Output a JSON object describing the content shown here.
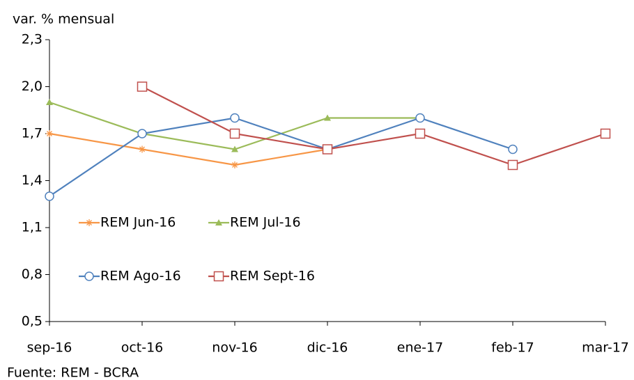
{
  "chart_data": {
    "type": "line",
    "y_label": "var. % mensual",
    "source": "Fuente: REM - BCRA",
    "categories": [
      "sep-16",
      "oct-16",
      "nov-16",
      "dic-16",
      "ene-17",
      "feb-17",
      "mar-17"
    ],
    "series": [
      {
        "name": "REM Jun-16",
        "color": "#f79646",
        "marker": "asterisk",
        "values": [
          1.7,
          1.6,
          1.5,
          1.6,
          null,
          null,
          null
        ]
      },
      {
        "name": "REM Jul-16",
        "color": "#9bbb59",
        "marker": "triangle",
        "values": [
          1.9,
          1.7,
          1.6,
          1.8,
          1.8,
          null,
          null
        ]
      },
      {
        "name": "REM Ago-16",
        "color": "#4f81bd",
        "marker": "circle",
        "values": [
          1.3,
          1.7,
          1.8,
          1.6,
          1.8,
          1.6,
          null
        ]
      },
      {
        "name": "REM Sept-16",
        "color": "#c0504d",
        "marker": "square",
        "values": [
          null,
          2.0,
          1.7,
          1.6,
          1.7,
          1.5,
          1.7
        ]
      }
    ],
    "ylim": [
      0.5,
      2.3
    ],
    "yticks": [
      {
        "value": 0.5,
        "label": "0,5"
      },
      {
        "value": 0.8,
        "label": "0,8"
      },
      {
        "value": 1.1,
        "label": "1,1"
      },
      {
        "value": 1.4,
        "label": "1,4"
      },
      {
        "value": 1.7,
        "label": "1,7"
      },
      {
        "value": 2.0,
        "label": "2,0"
      },
      {
        "value": 2.3,
        "label": "2,3"
      }
    ],
    "grid": false
  }
}
